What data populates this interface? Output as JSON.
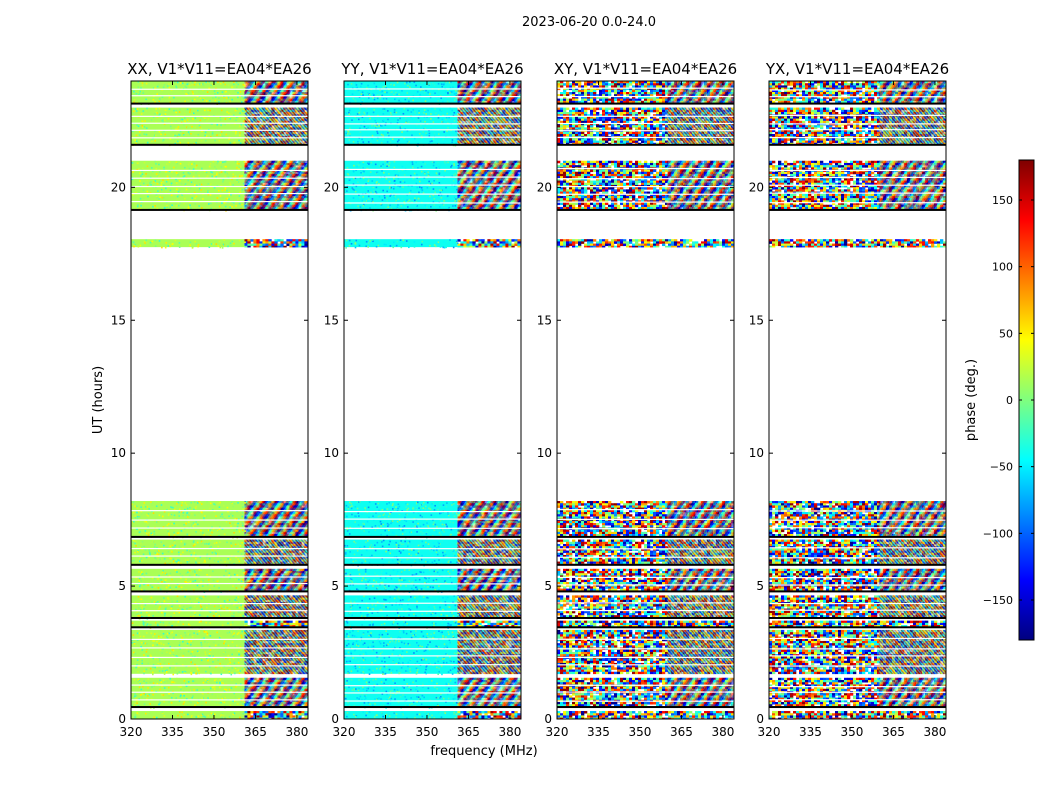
{
  "chart_data": {
    "type": "heatmap",
    "suptitle": "2023-06-20 0.0-24.0",
    "xlabel": "frequency (MHz)",
    "ylabel": "UT (hours)",
    "xlim": [
      320,
      384
    ],
    "ylim": [
      0,
      24
    ],
    "xticks": [
      "320",
      "335",
      "350",
      "365",
      "380"
    ],
    "xtick_values": [
      320,
      335,
      350,
      365,
      380
    ],
    "yticks": [
      "0",
      "5",
      "10",
      "15",
      "20"
    ],
    "ytick_values": [
      0,
      5,
      10,
      15,
      20
    ],
    "panels": [
      {
        "name": "xx",
        "title": "XX, V1*V11=EA04*EA26",
        "calibrated_band_end_mhz": 361,
        "calibrated_phase_deg": 15,
        "first_panel": true
      },
      {
        "name": "yy",
        "title": "YY, V1*V11=EA04*EA26",
        "calibrated_band_end_mhz": 361,
        "calibrated_phase_deg": -40,
        "first_panel": false
      },
      {
        "name": "xy",
        "title": "XY, V1*V11=EA04*EA26",
        "calibrated_band_end_mhz": 320,
        "calibrated_phase_deg": null,
        "first_panel": false
      },
      {
        "name": "yx",
        "title": "YX, V1*V11=EA04*EA26",
        "calibrated_band_end_mhz": 320,
        "calibrated_phase_deg": null,
        "first_panel": false
      }
    ],
    "data_time_blocks_ut_hours": [
      [
        0.0,
        0.3
      ],
      [
        0.45,
        1.55
      ],
      [
        1.7,
        3.35
      ],
      [
        3.45,
        3.7
      ],
      [
        3.8,
        4.65
      ],
      [
        4.8,
        5.65
      ],
      [
        5.8,
        6.75
      ],
      [
        6.85,
        8.2
      ],
      [
        17.75,
        18.05
      ],
      [
        19.15,
        21.0
      ],
      [
        21.6,
        23.0
      ],
      [
        23.15,
        24.0
      ]
    ],
    "flagged_lines_ut_hours": [
      0.45,
      3.45,
      3.8,
      4.8,
      5.8,
      6.85,
      19.15,
      21.6,
      23.15
    ],
    "colorbar": {
      "label": "phase (deg.)",
      "range": [
        -180,
        180
      ],
      "ticks": [
        "150",
        "100",
        "50",
        "0",
        "−50",
        "−100",
        "−150"
      ],
      "tick_values": [
        150,
        100,
        50,
        0,
        -50,
        -100,
        -150
      ],
      "colors": [
        "#00007f",
        "#0000ff",
        "#007fff",
        "#00ffff",
        "#7fff7f",
        "#ffff00",
        "#ff7f00",
        "#ff0000",
        "#7f0000"
      ]
    }
  }
}
